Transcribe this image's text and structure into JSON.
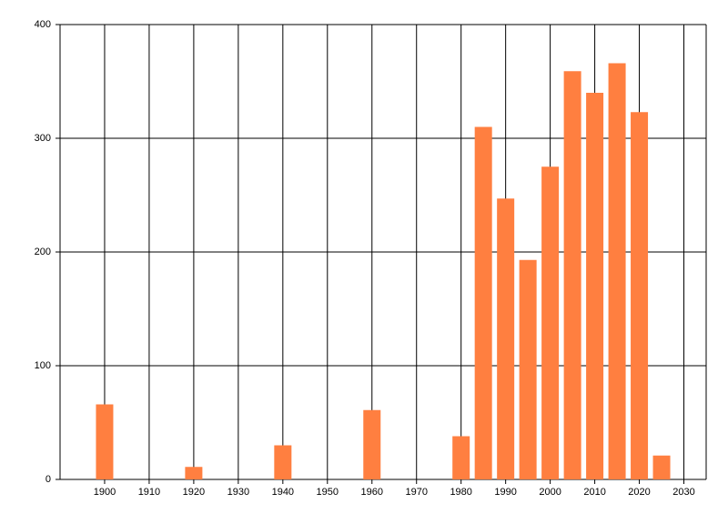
{
  "chart_data": {
    "type": "bar",
    "x": [
      1900,
      1920,
      1940,
      1960,
      1980,
      1985,
      1990,
      1995,
      2000,
      2005,
      2010,
      2015,
      2020,
      2025
    ],
    "values": [
      66,
      11,
      30,
      61,
      38,
      310,
      247,
      193,
      275,
      359,
      340,
      366,
      323,
      21
    ],
    "color": "#ff7f40",
    "xlim": [
      1890,
      2035
    ],
    "xticks": [
      1900,
      1910,
      1920,
      1930,
      1940,
      1950,
      1960,
      1970,
      1980,
      1990,
      2000,
      2010,
      2020,
      2030
    ],
    "ylim": [
      0,
      400
    ],
    "yticks": [
      0,
      100,
      200,
      300,
      400
    ],
    "grid": true
  }
}
